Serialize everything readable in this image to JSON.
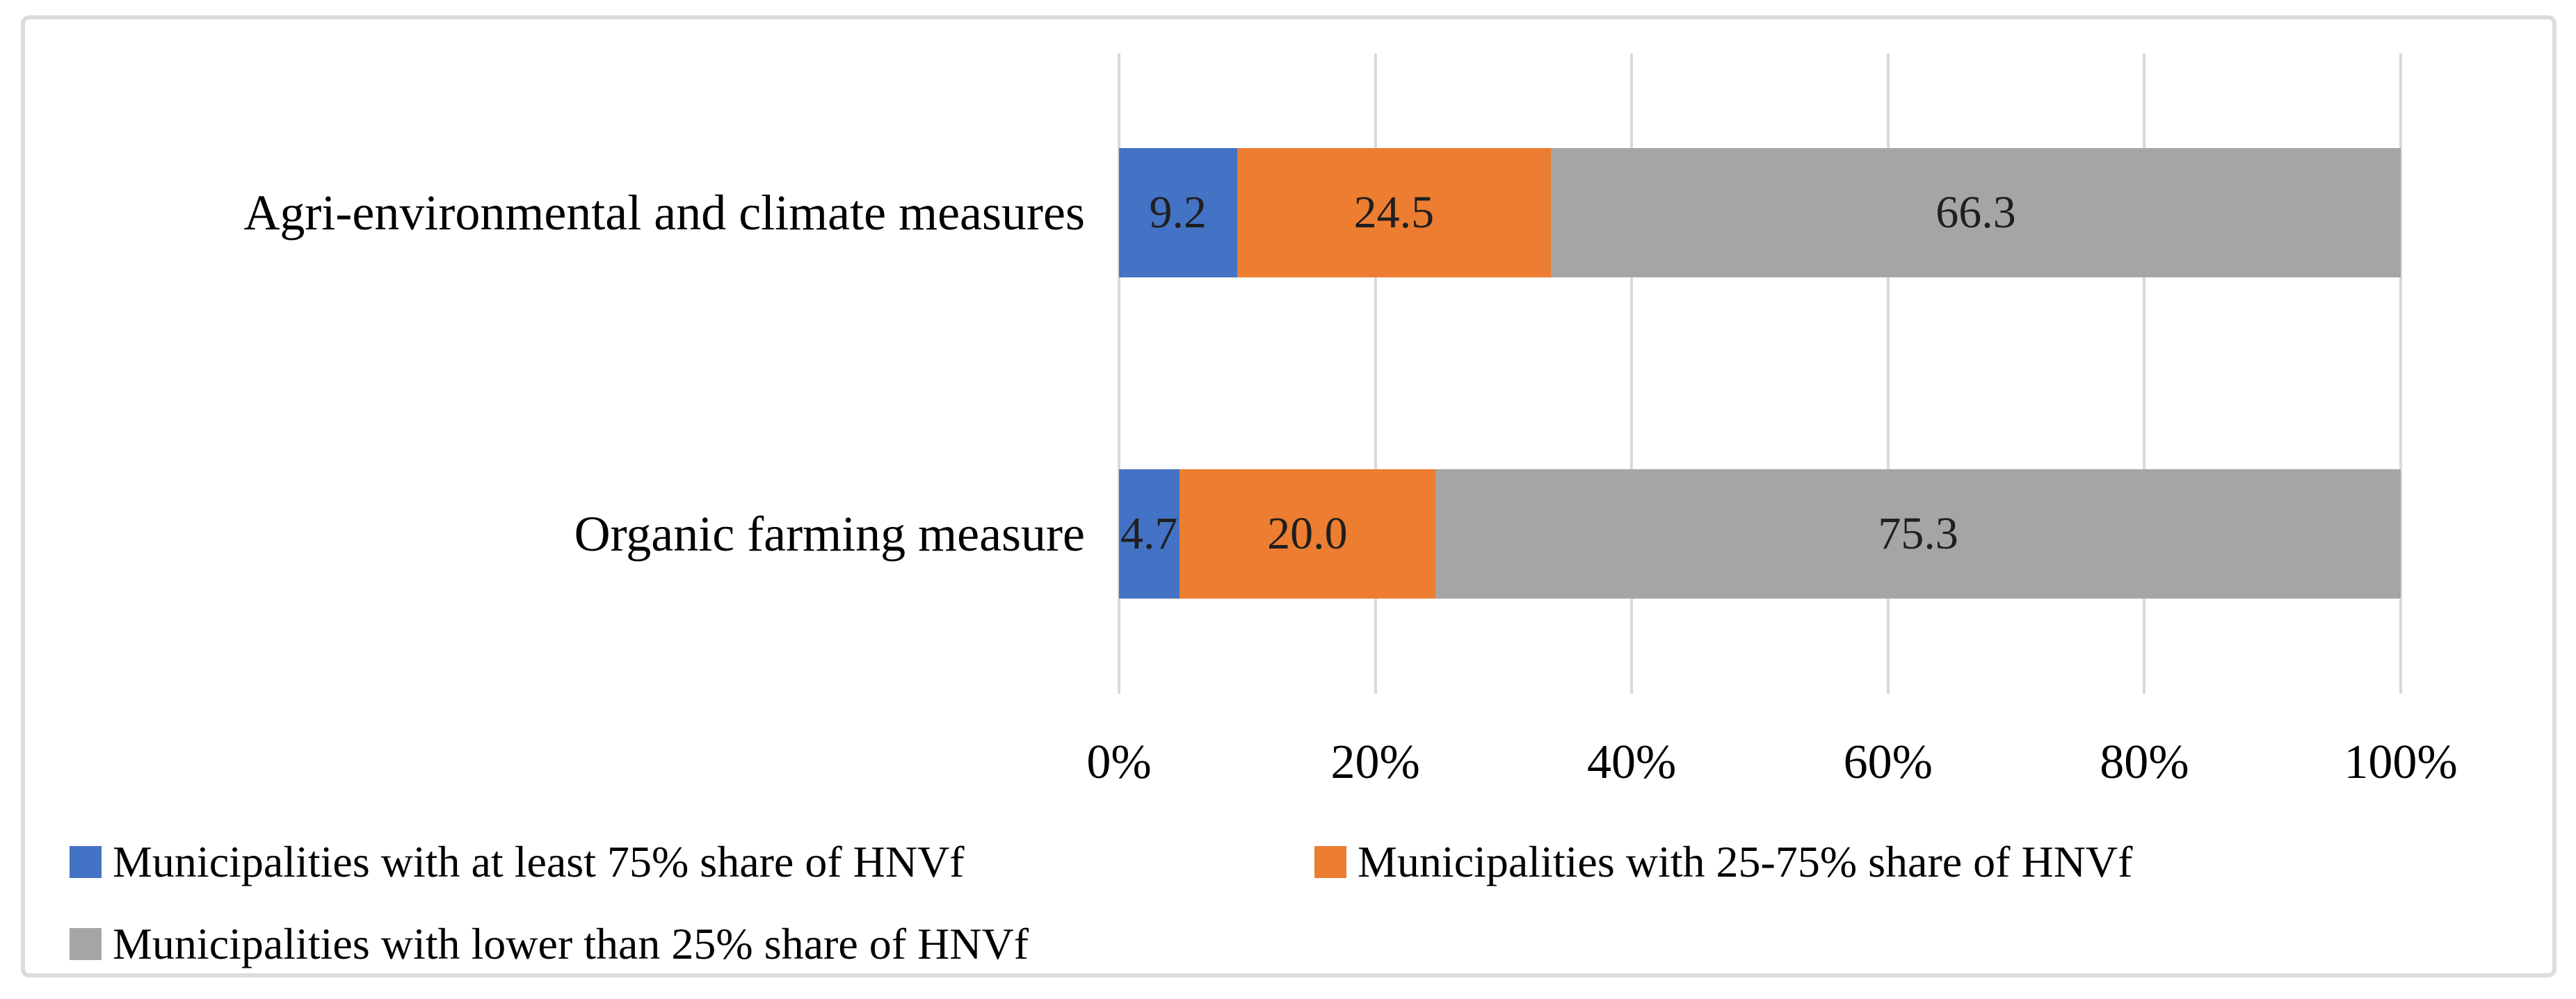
{
  "figure": {
    "background": "#ffffff",
    "border_color": "#dcdcdc"
  },
  "chart_data": {
    "type": "bar",
    "orientation": "horizontal-stacked",
    "title": "",
    "xlabel": "",
    "ylabel": "",
    "categories": [
      "Agri-environmental and climate measures",
      "Organic farming measure"
    ],
    "series": [
      {
        "name": "Municipalities with at least 75% share of HNVf",
        "color": "#4472C4",
        "values": [
          9.2,
          4.7
        ]
      },
      {
        "name": "Municipalities with 25-75% share of HNVf",
        "color": "#ED7D31",
        "values": [
          24.5,
          20.0
        ]
      },
      {
        "name": "Municipalities with lower than 25% share of HNVf",
        "color": "#A5A5A5",
        "values": [
          66.3,
          75.3
        ]
      }
    ],
    "data_labels": [
      [
        "9.2",
        "24.5",
        "66.3"
      ],
      [
        "4.7",
        "20.0",
        "75.3"
      ]
    ],
    "x_axis": {
      "min": 0,
      "max": 100,
      "ticks": [
        "0%",
        "20%",
        "40%",
        "60%",
        "80%",
        "100%"
      ]
    },
    "grid": "vertical",
    "gridline_color": "#d9d9d9",
    "text_color": "#000000",
    "legend_position": "bottom-left"
  }
}
